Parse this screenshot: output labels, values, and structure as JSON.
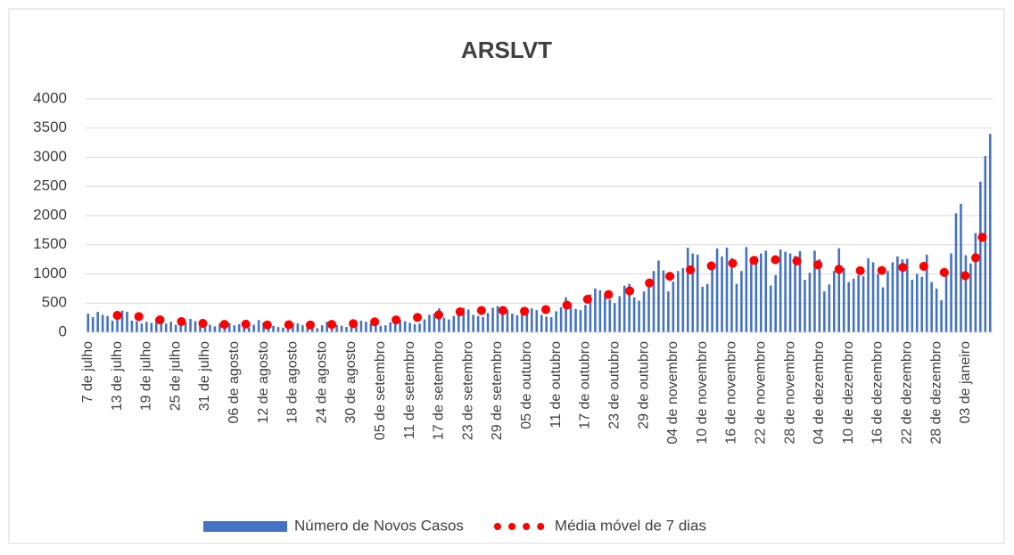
{
  "chart_data": {
    "type": "bar",
    "title": "ARSLVT",
    "categories": [
      "7 de julho",
      null,
      null,
      null,
      null,
      null,
      "13 de julho",
      null,
      null,
      null,
      null,
      null,
      "19 de julho",
      null,
      null,
      null,
      null,
      null,
      "25 de julho",
      null,
      null,
      null,
      null,
      null,
      "31 de julho",
      null,
      null,
      null,
      null,
      null,
      "06 de agosto",
      null,
      null,
      null,
      null,
      null,
      "12 de agosto",
      null,
      null,
      null,
      null,
      null,
      "18 de agosto",
      null,
      null,
      null,
      null,
      null,
      "24 de agosto",
      null,
      null,
      null,
      null,
      null,
      "30 de agosto",
      null,
      null,
      null,
      null,
      null,
      "05 de setembro",
      null,
      null,
      null,
      null,
      null,
      "11 de setembro",
      null,
      null,
      null,
      null,
      null,
      "17 de setembro",
      null,
      null,
      null,
      null,
      null,
      "23 de setembro",
      null,
      null,
      null,
      null,
      null,
      "29 de setembro",
      null,
      null,
      null,
      null,
      null,
      "05 de outubro",
      null,
      null,
      null,
      null,
      null,
      "11 de outubro",
      null,
      null,
      null,
      null,
      null,
      "17 de outubro",
      null,
      null,
      null,
      null,
      null,
      "23 de outubro",
      null,
      null,
      null,
      null,
      null,
      "29 de outubro",
      null,
      null,
      null,
      null,
      null,
      "04 de novembro",
      null,
      null,
      null,
      null,
      null,
      "10 de novembro",
      null,
      null,
      null,
      null,
      null,
      "16 de novembro",
      null,
      null,
      null,
      null,
      null,
      "22 de novembro",
      null,
      null,
      null,
      null,
      null,
      "28 de novembro",
      null,
      null,
      null,
      null,
      null,
      "04 de dezembro",
      null,
      null,
      null,
      null,
      null,
      "10 de dezembro",
      null,
      null,
      null,
      null,
      null,
      "16 de dezembro",
      null,
      null,
      null,
      null,
      null,
      "22 de dezembro",
      null,
      null,
      null,
      null,
      null,
      "28 de dezembro",
      null,
      null,
      null,
      null,
      null,
      "03 de janeiro",
      null,
      null,
      null,
      null,
      null
    ],
    "series": [
      {
        "name": "Número de Novos Casos",
        "type": "bar",
        "color": "#4472c4",
        "values": [
          320,
          260,
          350,
          300,
          280,
          200,
          250,
          370,
          350,
          200,
          190,
          150,
          180,
          160,
          240,
          220,
          150,
          180,
          130,
          120,
          170,
          230,
          190,
          140,
          160,
          130,
          100,
          150,
          180,
          160,
          120,
          140,
          90,
          80,
          130,
          210,
          170,
          130,
          110,
          90,
          80,
          120,
          160,
          150,
          120,
          100,
          80,
          70,
          120,
          180,
          150,
          130,
          110,
          90,
          100,
          140,
          200,
          180,
          150,
          130,
          110,
          120,
          170,
          230,
          210,
          190,
          160,
          140,
          150,
          220,
          300,
          320,
          410,
          250,
          220,
          280,
          360,
          420,
          390,
          300,
          280,
          260,
          330,
          420,
          450,
          440,
          380,
          320,
          290,
          350,
          400,
          410,
          380,
          300,
          270,
          260,
          360,
          430,
          600,
          500,
          400,
          380,
          470,
          650,
          750,
          720,
          640,
          560,
          500,
          620,
          800,
          830,
          600,
          540,
          700,
          900,
          1050,
          1230,
          1060,
          700,
          870,
          1050,
          1100,
          1450,
          1350,
          1330,
          780,
          830,
          1100,
          1440,
          1300,
          1450,
          1270,
          830,
          1050,
          1460,
          1280,
          1300,
          1350,
          1400,
          800,
          980,
          1420,
          1380,
          1350,
          1310,
          1390,
          900,
          1020,
          1400,
          1250,
          700,
          820,
          1050,
          1440,
          1100,
          860,
          920,
          980,
          960,
          1270,
          1200,
          1000,
          770,
          1050,
          1200,
          1300,
          1250,
          1260,
          900,
          1000,
          950,
          1330,
          860,
          750,
          550,
          1000,
          1350,
          2040,
          2200,
          1320,
          1180,
          1700,
          2580,
          3020,
          3400
        ]
      },
      {
        "name": "Média móvel de 7 dias",
        "type": "line",
        "color": "#ff0000",
        "values": [
          null,
          null,
          null,
          null,
          null,
          null,
          290,
          286,
          283,
          279,
          275,
          262,
          249,
          236,
          223,
          210,
          204,
          198,
          191,
          185,
          178,
          171,
          164,
          157,
          150,
          146,
          143,
          139,
          135,
          136,
          138,
          139,
          140,
          137,
          134,
          131,
          128,
          125,
          126,
          128,
          129,
          130,
          129,
          128,
          127,
          126,
          125,
          128,
          130,
          133,
          135,
          138,
          141,
          144,
          147,
          150,
          158,
          165,
          173,
          180,
          188,
          195,
          203,
          210,
          220,
          230,
          240,
          250,
          260,
          270,
          280,
          290,
          300,
          312,
          324,
          336,
          348,
          360,
          364,
          368,
          371,
          375,
          375,
          375,
          375,
          375,
          372,
          369,
          366,
          363,
          360,
          368,
          375,
          383,
          390,
          408,
          426,
          444,
          462,
          480,
          505,
          530,
          555,
          580,
          598,
          616,
          634,
          652,
          670,
          683,
          695,
          708,
          720,
          760,
          800,
          840,
          880,
          904,
          928,
          952,
          976,
          1000,
          1028,
          1055,
          1083,
          1110,
          1120,
          1130,
          1140,
          1150,
          1160,
          1170,
          1180,
          1190,
          1200,
          1213,
          1225,
          1238,
          1250,
          1248,
          1246,
          1244,
          1242,
          1240,
          1233,
          1225,
          1218,
          1210,
          1190,
          1170,
          1150,
          1130,
          1110,
          1095,
          1080,
          1065,
          1050,
          1053,
          1055,
          1058,
          1060,
          1060,
          1060,
          1060,
          1060,
          1060,
          1085,
          1110,
          1135,
          1160,
          1148,
          1135,
          1123,
          1110,
          1078,
          1045,
          1013,
          980,
          978,
          975,
          970,
          1050,
          1270,
          1550,
          1750,
          1870
        ]
      }
    ],
    "ylim": [
      0,
      4000
    ],
    "yticks": [
      0,
      500,
      1000,
      1500,
      2000,
      2500,
      3000,
      3500,
      4000
    ],
    "grid": true,
    "legend": "bottom"
  }
}
